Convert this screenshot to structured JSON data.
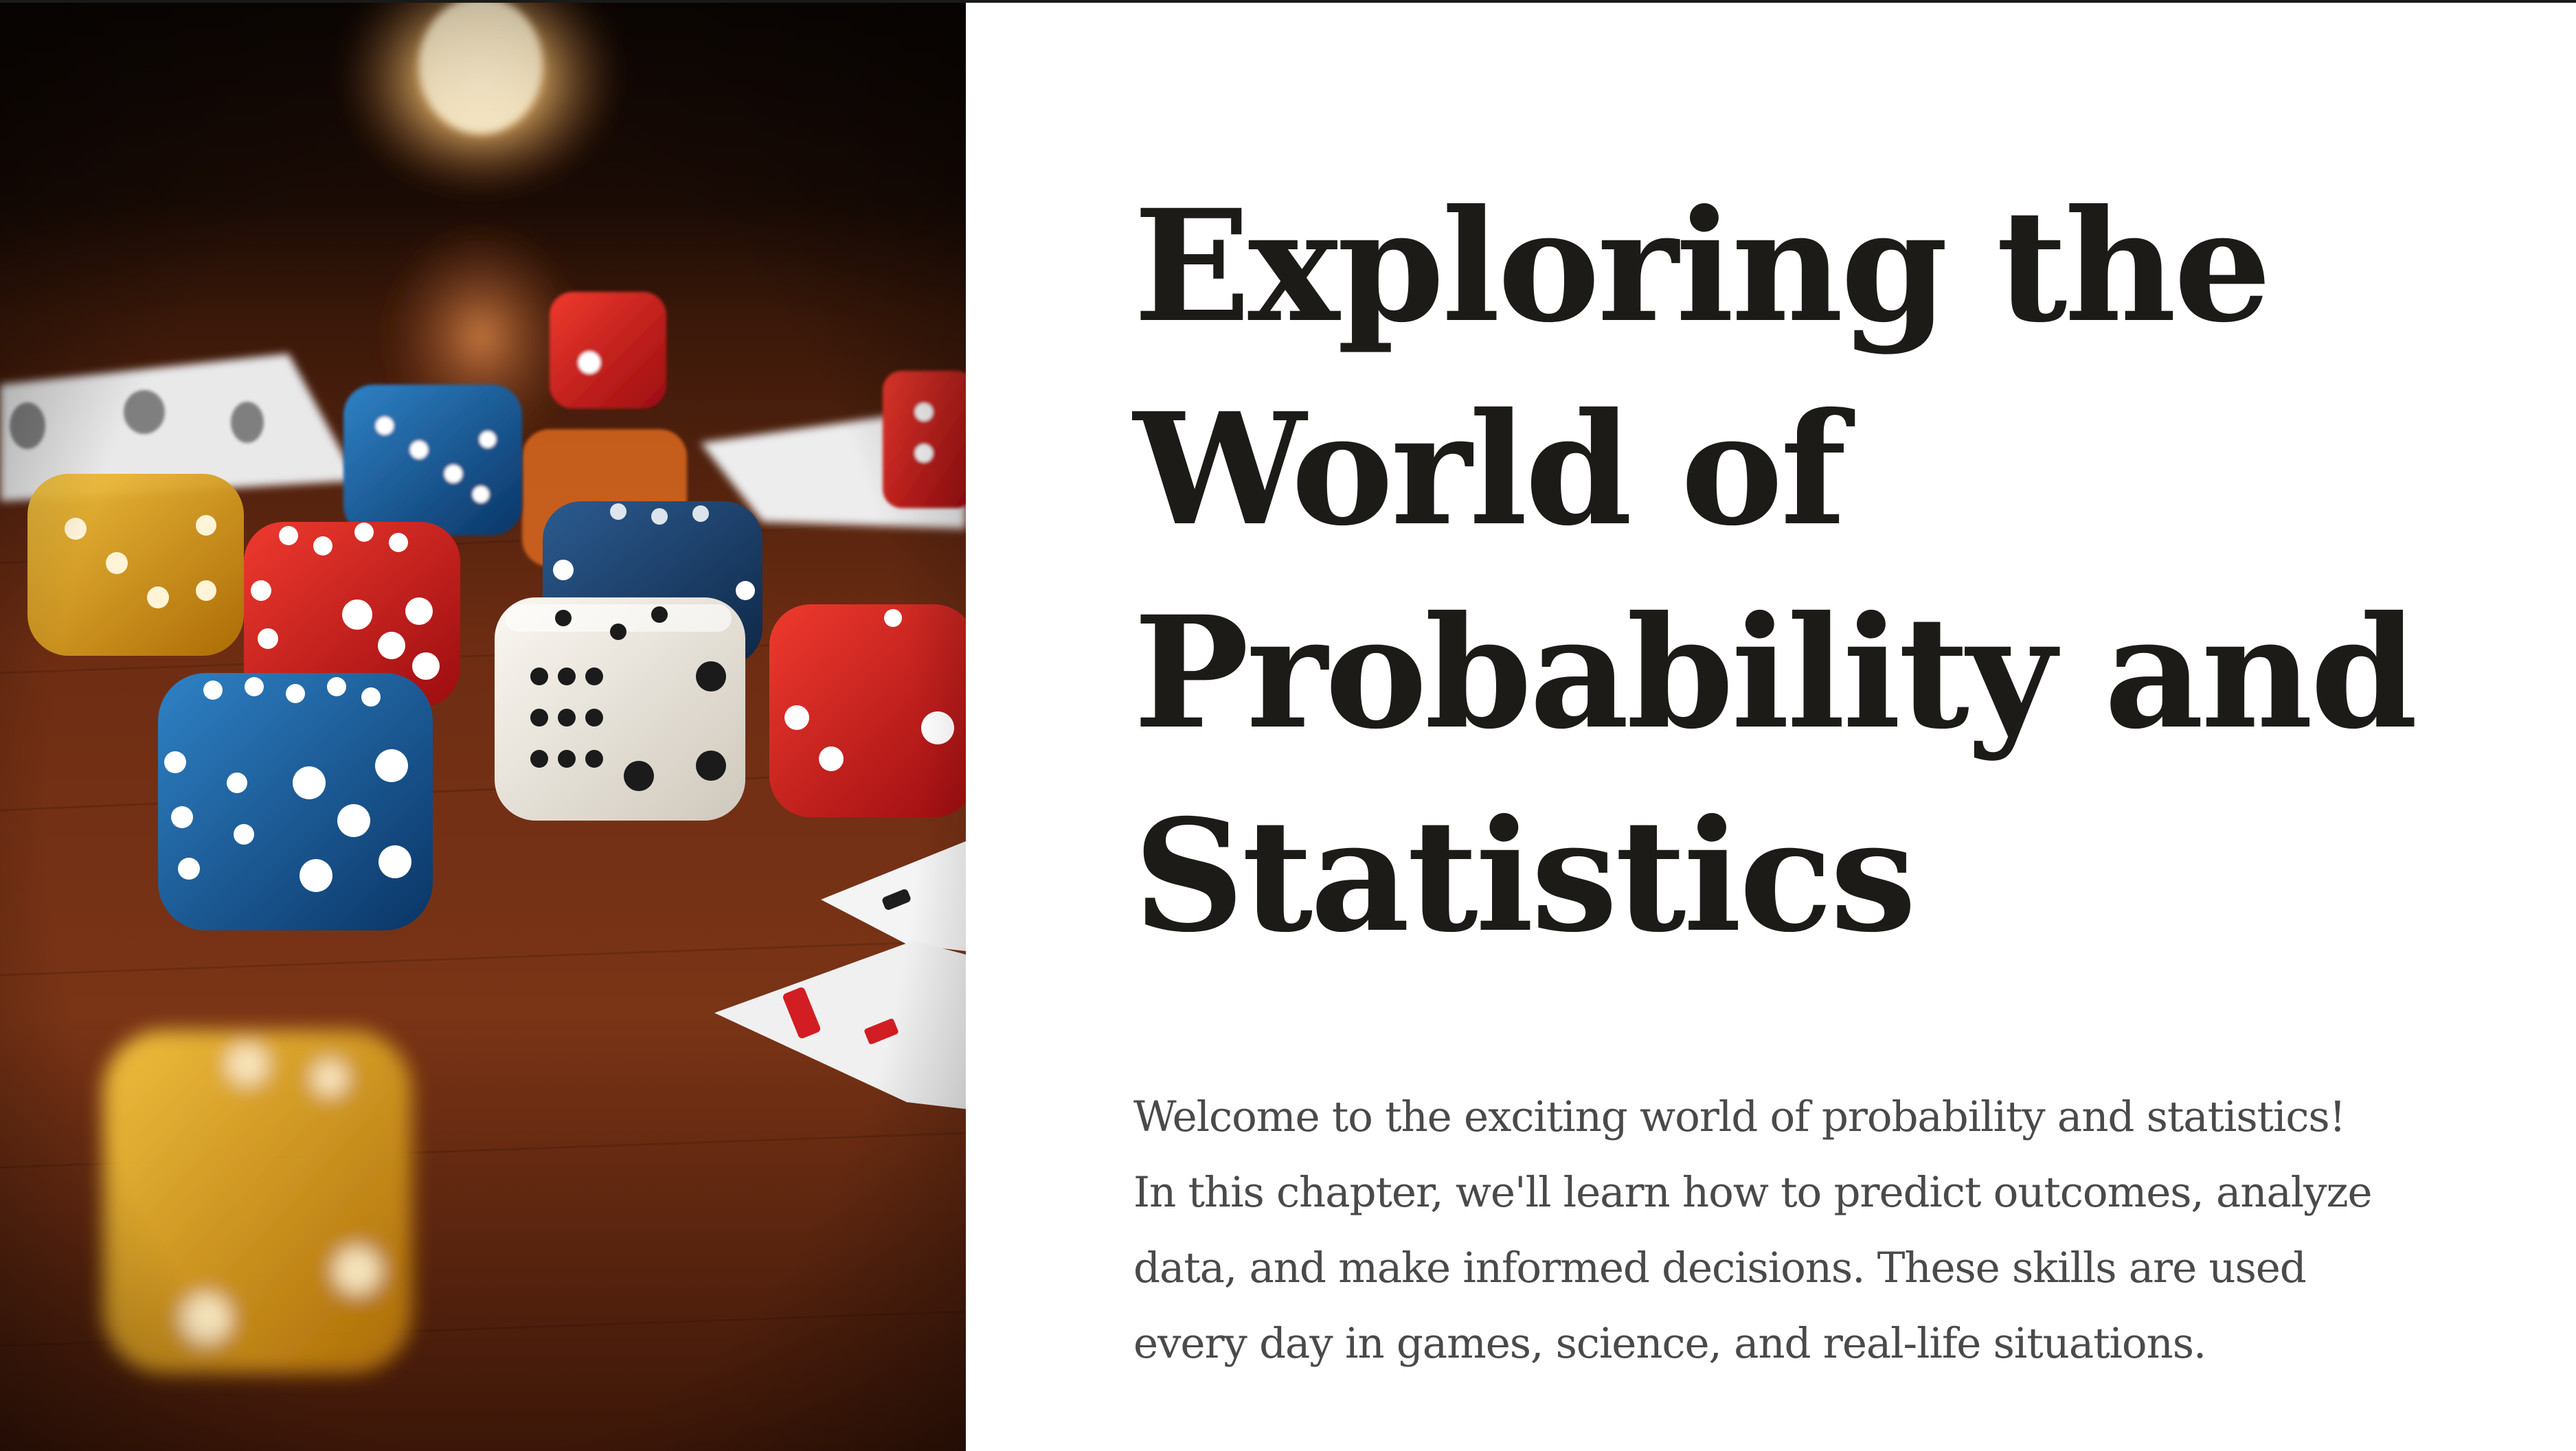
{
  "slide": {
    "title_lines": [
      "Exploring the",
      "World of",
      "Probability and",
      "Statistics"
    ],
    "body_lines": [
      "Welcome to the exciting world of probability and statistics!",
      "In this chapter, we'll learn how to predict outcomes, analyze",
      "data, and make informed decisions. These skills are used",
      "every day in games, science, and real-life situations."
    ]
  },
  "photo": {
    "subject": "dice-and-playing-cards",
    "palette": {
      "table_wood": "#7a3416",
      "background_dark": "#140804",
      "lamp_glow": "#ffd9a0",
      "die_red": "#c8161a",
      "die_blue": "#0d4f8e",
      "die_white": "#f1ede6",
      "die_amber": "#e0a012",
      "card": "#f2f2f2"
    }
  },
  "colors": {
    "title": "#1c1b18",
    "body": "#4a4a4a",
    "background": "#ffffff"
  }
}
